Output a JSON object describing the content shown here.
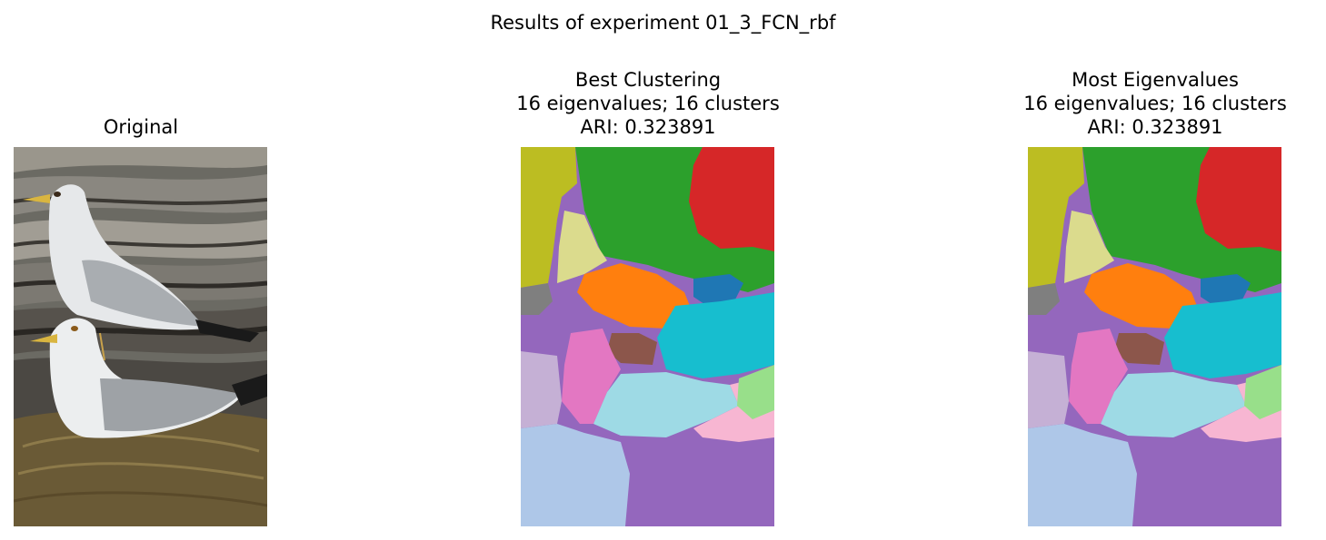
{
  "figure": {
    "title": "Results of experiment 01_3_FCN_rbf"
  },
  "panels": [
    {
      "title_lines": [
        "Original"
      ]
    },
    {
      "title_lines": [
        "Best Clustering",
        "16 eigenvalues; 16 clusters",
        "ARI: 0.323891"
      ]
    },
    {
      "title_lines": [
        "Most Eigenvalues",
        "16 eigenvalues; 16 clusters",
        "ARI: 0.323891"
      ]
    }
  ],
  "palette": {
    "tab_blue": "#1f77b4",
    "tab_orange": "#ff7f0e",
    "tab_green": "#2ca02c",
    "tab_lightgreen": "#98df8a",
    "tab_red": "#d62728",
    "tab_purple": "#9467bd",
    "tab_lightpurple": "#c5b0d5",
    "tab_brown": "#8c564b",
    "tab_pink": "#e377c2",
    "tab_lightpink": "#f7b6d2",
    "tab_gray": "#7f7f7f",
    "tab_olive": "#bcbd22",
    "tab_lightolive": "#dbdb8d",
    "tab_cyan": "#17becf",
    "tab_lightcyan": "#9edae5",
    "tab_lightblue": "#aec7e8"
  }
}
